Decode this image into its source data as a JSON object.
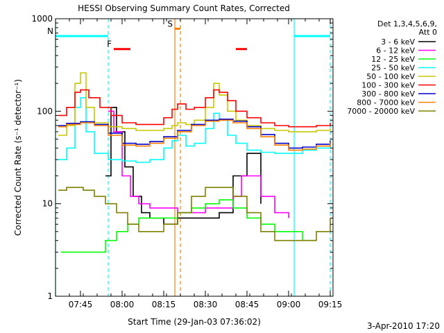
{
  "chart_data": {
    "type": "line",
    "title": "HESSI Observing Summary Count Rates, Corrected",
    "xlabel": "Start Time (29-Jan-03 07:36:02)",
    "ylabel": "Corrected Count Rate (s⁻¹ detector⁻¹)",
    "yscale": "log",
    "ylim": [
      1,
      1000
    ],
    "y_ticks": [
      "1",
      "10",
      "100",
      "1000"
    ],
    "xlim": [
      "07:36",
      "09:16"
    ],
    "x_ticks": [
      "07:45",
      "08:00",
      "08:15",
      "08:30",
      "08:45",
      "09:00",
      "09:15"
    ],
    "footer_date": "3-Apr-2010 17:20",
    "legend": {
      "placement": "right",
      "header_line1": "Det 1,3,4,5,6,9,",
      "header_line2": "Att 0"
    },
    "flags": [
      {
        "label": "N",
        "color": "#00ffff",
        "y": 650,
        "ranges": [
          [
            "07:36",
            "07:55"
          ],
          [
            "09:02",
            "09:15"
          ]
        ]
      },
      {
        "label": "F",
        "color": "#ff0000",
        "y": 470,
        "ranges": [
          [
            "07:57",
            "08:03"
          ],
          [
            "08:41",
            "08:45"
          ]
        ]
      },
      {
        "label": "S",
        "color": "#ff8000",
        "y": 780,
        "ranges": [
          [
            "08:19",
            "08:21"
          ]
        ]
      }
    ],
    "vlines": [
      {
        "x": "07:36",
        "color": "#00ffff",
        "style": "solid"
      },
      {
        "x": "07:55",
        "color": "#00ffff",
        "style": "dashed"
      },
      {
        "x": "08:19",
        "color": "#ff8000",
        "style": "solid"
      },
      {
        "x": "08:21",
        "color": "#ff8000",
        "style": "dashed"
      },
      {
        "x": "09:02",
        "color": "#00ffff",
        "style": "solid"
      },
      {
        "x": "09:15",
        "color": "#00ffff",
        "style": "dashed"
      }
    ],
    "series": [
      {
        "name": "3 - 6 keV",
        "color": "#000000",
        "x": [
          "07:54",
          "07:56",
          "07:58",
          "08:01",
          "08:04",
          "08:07",
          "08:10",
          "08:15",
          "08:20",
          "08:25",
          "08:30",
          "08:35",
          "08:40",
          "08:45",
          "08:50"
        ],
        "y": [
          20,
          110,
          60,
          25,
          12,
          8,
          7,
          6,
          7,
          7,
          7,
          8,
          20,
          35,
          10
        ]
      },
      {
        "name": "6 - 12 keV",
        "color": "#ff00ff",
        "x": [
          "07:55",
          "07:57",
          "08:00",
          "08:03",
          "08:06",
          "08:10",
          "08:15",
          "08:20",
          "08:25",
          "08:30",
          "08:35",
          "08:40",
          "08:43",
          "08:46",
          "08:50",
          "08:55",
          "09:00"
        ],
        "y": [
          100,
          60,
          20,
          12,
          10,
          9,
          9,
          8,
          8,
          9,
          9,
          12,
          20,
          20,
          12,
          8,
          7
        ]
      },
      {
        "name": "12 - 25 keV",
        "color": "#00ff00",
        "x": [
          "07:38",
          "07:42",
          "07:46",
          "07:50",
          "07:54",
          "07:58",
          "08:02",
          "08:06",
          "08:10",
          "08:15",
          "08:20",
          "08:25",
          "08:30",
          "08:35",
          "08:40",
          "08:45",
          "08:50",
          "08:55",
          "09:00",
          "09:05",
          "09:10"
        ],
        "y": [
          3,
          3,
          3,
          3,
          4,
          5,
          6,
          7,
          7,
          7,
          8,
          9,
          10,
          11,
          9,
          7,
          6,
          5,
          5,
          4,
          4
        ]
      },
      {
        "name": "25 - 50 keV",
        "color": "#00ffff",
        "x": [
          "07:37",
          "07:40",
          "07:43",
          "07:45",
          "07:47",
          "07:50",
          "07:55",
          "08:00",
          "08:05",
          "08:10",
          "08:15",
          "08:18",
          "08:20",
          "08:23",
          "08:26",
          "08:30",
          "08:33",
          "08:35",
          "08:38",
          "08:41",
          "08:45",
          "08:50",
          "08:55",
          "09:00",
          "09:05",
          "09:10",
          "09:15"
        ],
        "y": [
          30,
          40,
          110,
          140,
          60,
          35,
          30,
          29,
          28,
          30,
          40,
          48,
          55,
          42,
          45,
          65,
          95,
          80,
          55,
          45,
          38,
          36,
          35,
          35,
          38,
          40,
          45
        ]
      },
      {
        "name": "50 - 100 keV",
        "color": "#c8c800",
        "x": [
          "07:37",
          "07:40",
          "07:43",
          "07:45",
          "07:47",
          "07:50",
          "07:55",
          "08:00",
          "08:05",
          "08:10",
          "08:15",
          "08:18",
          "08:20",
          "08:23",
          "08:26",
          "08:30",
          "08:33",
          "08:35",
          "08:38",
          "08:41",
          "08:45",
          "08:50",
          "08:55",
          "09:00",
          "09:05",
          "09:10",
          "09:15"
        ],
        "y": [
          55,
          70,
          200,
          260,
          110,
          75,
          68,
          65,
          62,
          62,
          65,
          70,
          75,
          72,
          80,
          110,
          200,
          150,
          100,
          80,
          70,
          65,
          62,
          60,
          60,
          62,
          65
        ]
      },
      {
        "name": "100 - 300 keV",
        "color": "#ff0000",
        "x": [
          "07:37",
          "07:40",
          "07:43",
          "07:45",
          "07:48",
          "07:52",
          "07:56",
          "08:00",
          "08:05",
          "08:10",
          "08:15",
          "08:18",
          "08:20",
          "08:23",
          "08:26",
          "08:30",
          "08:33",
          "08:35",
          "08:38",
          "08:41",
          "08:45",
          "08:50",
          "08:55",
          "09:00",
          "09:05",
          "09:10",
          "09:15"
        ],
        "y": [
          90,
          110,
          160,
          170,
          140,
          110,
          90,
          75,
          72,
          72,
          85,
          105,
          120,
          105,
          110,
          140,
          170,
          160,
          130,
          100,
          85,
          75,
          70,
          68,
          68,
          70,
          75
        ]
      },
      {
        "name": "300 - 800 keV",
        "color": "#0000cc",
        "x": [
          "07:37",
          "07:40",
          "07:45",
          "07:50",
          "07:55",
          "08:00",
          "08:05",
          "08:10",
          "08:15",
          "08:20",
          "08:25",
          "08:30",
          "08:35",
          "08:40",
          "08:45",
          "08:50",
          "08:55",
          "09:00",
          "09:05",
          "09:10",
          "09:15"
        ],
        "y": [
          70,
          74,
          77,
          72,
          58,
          45,
          44,
          47,
          53,
          62,
          72,
          80,
          82,
          78,
          68,
          56,
          45,
          40,
          41,
          44,
          48
        ]
      },
      {
        "name": "800 - 7000 keV",
        "color": "#ff8000",
        "x": [
          "07:37",
          "07:40",
          "07:45",
          "07:50",
          "07:55",
          "08:00",
          "08:05",
          "08:10",
          "08:15",
          "08:20",
          "08:25",
          "08:30",
          "08:35",
          "08:40",
          "08:45",
          "08:50",
          "08:55",
          "09:00",
          "09:05",
          "09:10",
          "09:15"
        ],
        "y": [
          68,
          72,
          75,
          70,
          55,
          43,
          42,
          45,
          51,
          60,
          70,
          78,
          80,
          75,
          65,
          53,
          43,
          38,
          39,
          42,
          46
        ]
      },
      {
        "name": "7000 - 20000 keV",
        "color": "#808000",
        "x": [
          "07:37",
          "07:40",
          "07:43",
          "07:46",
          "07:50",
          "07:54",
          "07:58",
          "08:02",
          "08:06",
          "08:10",
          "08:15",
          "08:20",
          "08:25",
          "08:30",
          "08:35",
          "08:40",
          "08:45",
          "08:50",
          "08:55",
          "09:00",
          "09:05",
          "09:10",
          "09:15"
        ],
        "y": [
          14,
          15,
          15,
          14,
          12,
          10,
          8,
          6,
          5,
          5,
          6,
          8,
          12,
          15,
          15,
          12,
          8,
          5,
          4,
          4,
          4,
          5,
          7
        ]
      }
    ]
  }
}
